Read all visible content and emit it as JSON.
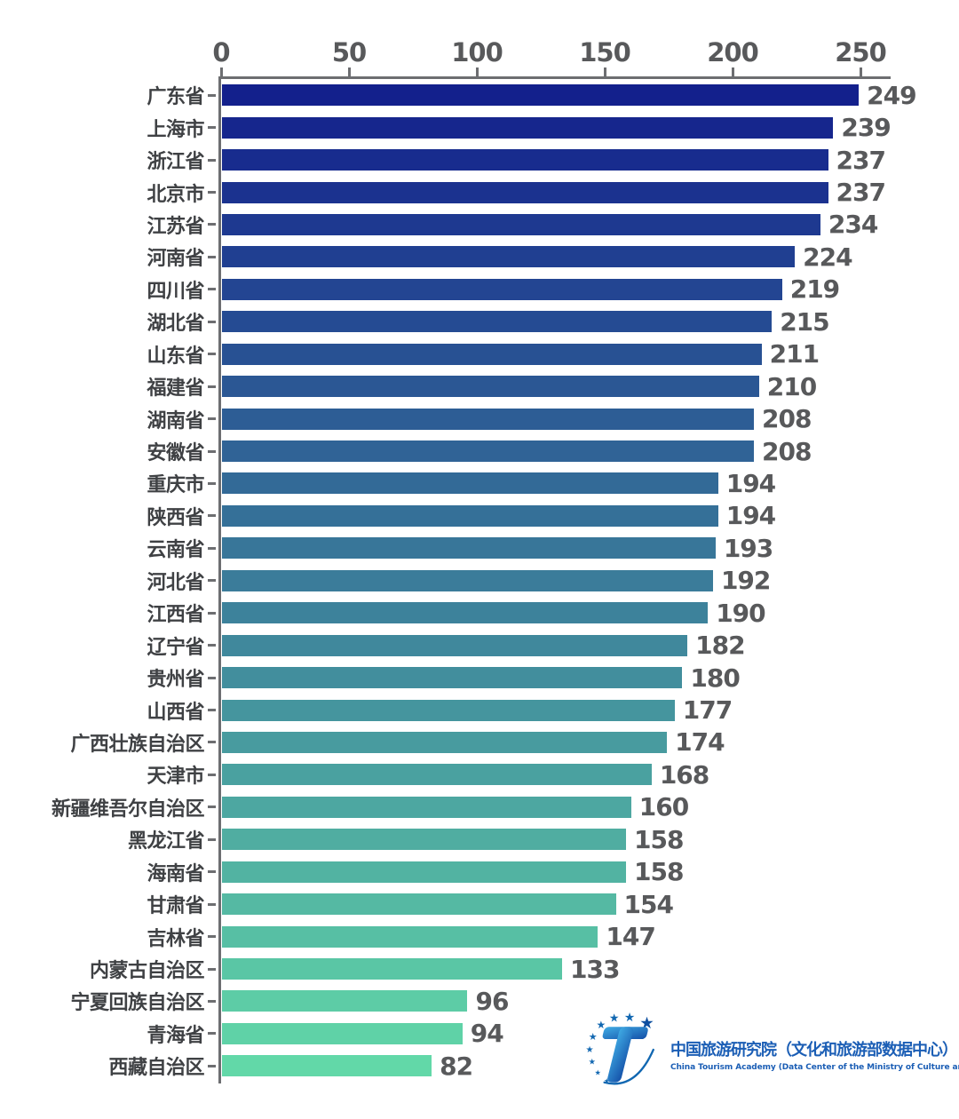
{
  "chart_data": {
    "type": "bar",
    "orientation": "horizontal",
    "title": "",
    "xlabel": "",
    "ylabel": "",
    "categories": [
      "广东省",
      "上海市",
      "浙江省",
      "北京市",
      "江苏省",
      "河南省",
      "四川省",
      "湖北省",
      "山东省",
      "福建省",
      "湖南省",
      "安徽省",
      "重庆市",
      "陕西省",
      "云南省",
      "河北省",
      "江西省",
      "辽宁省",
      "贵州省",
      "山西省",
      "广西壮族自治区",
      "天津市",
      "新疆维吾尔自治区",
      "黑龙江省",
      "海南省",
      "甘肃省",
      "吉林省",
      "内蒙古自治区",
      "宁夏回族自治区",
      "青海省",
      "西藏自治区"
    ],
    "values": [
      249,
      239,
      237,
      237,
      234,
      224,
      219,
      215,
      211,
      210,
      208,
      208,
      194,
      194,
      193,
      192,
      190,
      182,
      180,
      177,
      174,
      168,
      160,
      158,
      158,
      154,
      147,
      133,
      96,
      94,
      82
    ],
    "x_ticks": [
      0,
      50,
      100,
      150,
      200,
      250
    ],
    "xlim": [
      0,
      262
    ],
    "grid": false,
    "legend": false,
    "colors": {
      "bar_gradient_start": "#13208C",
      "bar_gradient_end": "#62D8A8",
      "axis": "#6D6E71",
      "x_tick_label": "#58595B",
      "category_label": "#3F4144",
      "value_label": "#58595B",
      "background": "#FFFFFF"
    }
  },
  "footer_logo": {
    "icon": "china-tourism-academy-logo",
    "letter": "T",
    "title_cn": "中国旅游研究院（文化和旅游部数据中心）",
    "subtitle_en": "China Tourism Academy (Data Center of the Ministry of Culture and Tourism)",
    "brand_color": "#1B5EB5",
    "star_color": "#1167B1",
    "t_gradient_start": "#3FABE4",
    "t_gradient_end": "#1450A8"
  }
}
